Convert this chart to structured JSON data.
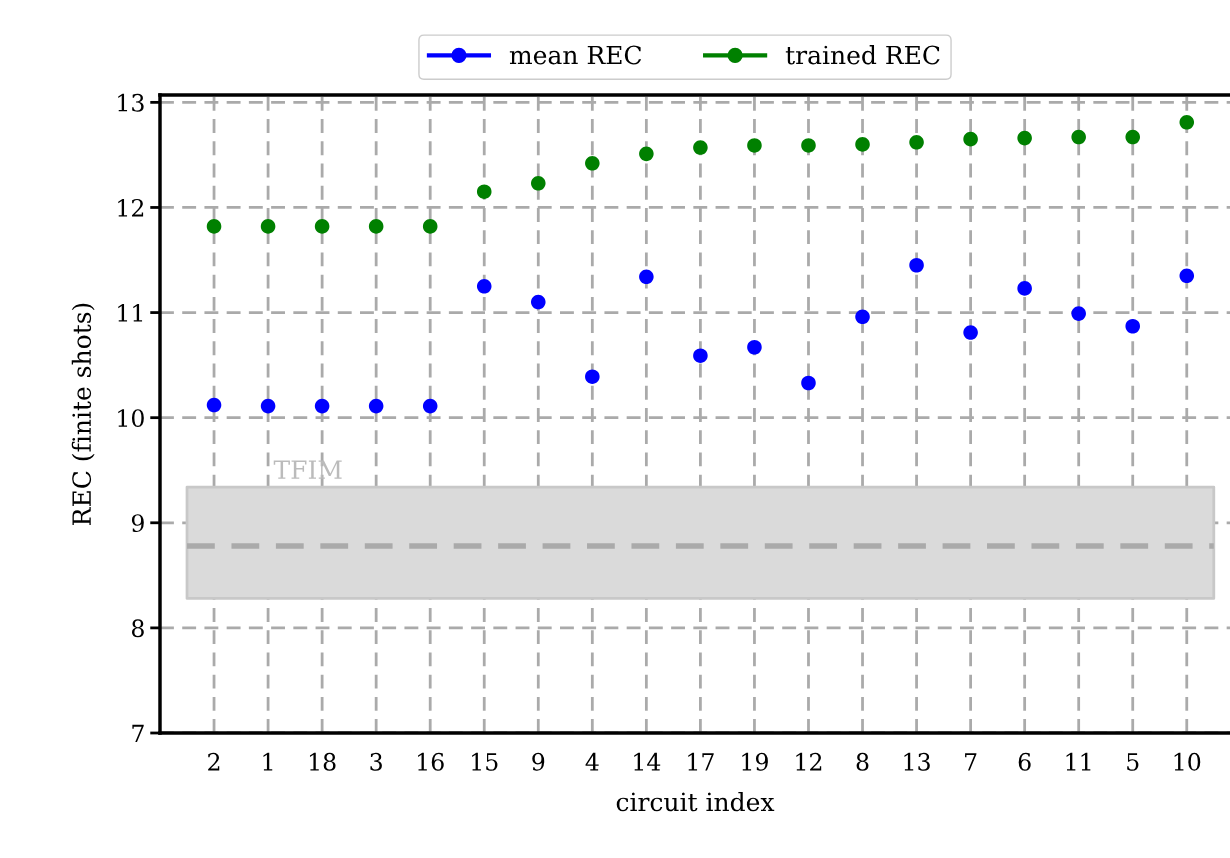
{
  "chart_data": {
    "type": "scatter",
    "xlabel": "circuit index",
    "ylabel": "REC (finite shots)",
    "categories": [
      "2",
      "1",
      "18",
      "3",
      "16",
      "15",
      "9",
      "4",
      "14",
      "17",
      "19",
      "12",
      "8",
      "13",
      "7",
      "6",
      "11",
      "5",
      "10"
    ],
    "series": [
      {
        "name": "mean REC",
        "color": "#0000ff",
        "values": [
          10.12,
          10.11,
          10.11,
          10.11,
          10.11,
          11.25,
          11.1,
          10.39,
          11.34,
          10.59,
          10.67,
          10.33,
          10.96,
          11.45,
          10.81,
          11.23,
          10.99,
          10.87,
          11.35
        ]
      },
      {
        "name": "trained REC",
        "color": "#008000",
        "values": [
          11.82,
          11.82,
          11.82,
          11.82,
          11.82,
          12.15,
          12.23,
          12.42,
          12.51,
          12.57,
          12.59,
          12.59,
          12.6,
          12.62,
          12.65,
          12.66,
          12.67,
          12.67,
          12.81
        ]
      }
    ],
    "ylim": [
      7,
      13.07
    ],
    "yticks": [
      7,
      8,
      9,
      10,
      11,
      12,
      13
    ],
    "ref_lines": [
      {
        "axis": "y",
        "value": 8.78,
        "color": "#aaaaaa",
        "line_style": "dashed"
      }
    ],
    "bands": [
      {
        "axis": "y",
        "from": 8.28,
        "to": 9.34,
        "label": "TFIM",
        "color": "#dadada"
      }
    ],
    "grid": true,
    "legend": "top",
    "marker": "circle"
  }
}
